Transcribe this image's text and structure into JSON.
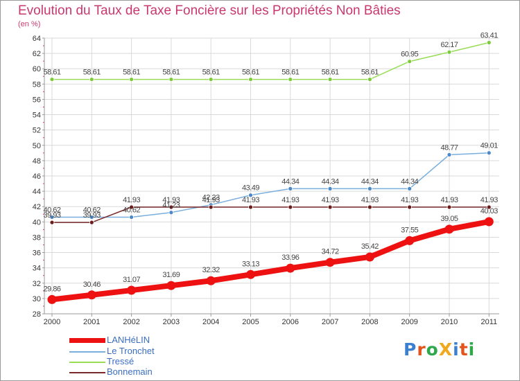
{
  "title": "Evolution du Taux de Taxe Foncière sur les Propriétés Non Bâties",
  "unit_label": "(en %)",
  "logo": "ProXiti",
  "chart_data": {
    "type": "line",
    "categories": [
      "2000",
      "2001",
      "2002",
      "2003",
      "2004",
      "2005",
      "2006",
      "2007",
      "2008",
      "2009",
      "2010",
      "2011"
    ],
    "ylim": [
      28,
      64
    ],
    "yticks": [
      28,
      30,
      32,
      34,
      36,
      38,
      40,
      42,
      44,
      46,
      48,
      50,
      52,
      54,
      56,
      58,
      60,
      62,
      64
    ],
    "grid": true,
    "series": [
      {
        "name": "Tressé",
        "color": "#99dd55",
        "point_color": "#7ccb3a",
        "width": 1.5,
        "radius": 3,
        "values": [
          58.61,
          58.61,
          58.61,
          58.61,
          58.61,
          58.61,
          58.61,
          58.61,
          58.61,
          60.95,
          62.17,
          63.41
        ],
        "labels": [
          "58.61",
          "58.61",
          "58.61",
          "58.61",
          "58.61",
          "58.61",
          "58.61",
          "58.61",
          "58.61",
          "60.95",
          "62.17",
          "63.41"
        ]
      },
      {
        "name": "Le Tronchet",
        "color": "#7aaedc",
        "point_color": "#4a88c8",
        "width": 1.5,
        "radius": 3,
        "values": [
          40.62,
          40.62,
          40.62,
          41.23,
          42.23,
          43.49,
          44.34,
          44.34,
          44.34,
          44.34,
          48.77,
          49.01
        ],
        "labels": [
          "40.62",
          "40.62",
          "40.62",
          "41.23",
          "42.23",
          "43.49",
          "44.34",
          "44.34",
          "44.34",
          "44.34",
          "48.77",
          "49.01"
        ]
      },
      {
        "name": "Bonnemain",
        "color": "#7a2a2a",
        "point_color": "#6b1c1c",
        "width": 1.5,
        "radius": 3,
        "values": [
          39.93,
          39.93,
          41.93,
          41.93,
          41.93,
          41.93,
          41.93,
          41.93,
          41.93,
          41.93,
          41.93,
          41.93
        ],
        "labels": [
          "39.93",
          "39.93",
          "41.93",
          "41.93",
          "41.93",
          "41.93",
          "41.93",
          "41.93",
          "41.93",
          "41.93",
          "41.93",
          "41.93"
        ]
      },
      {
        "name": "LANHéLIN",
        "color": "#ee1111",
        "point_color": "#ee1111",
        "width": 8,
        "radius": 6.5,
        "values": [
          29.86,
          30.46,
          31.07,
          31.69,
          32.32,
          33.13,
          33.96,
          34.72,
          35.42,
          37.55,
          39.05,
          40.03
        ],
        "labels": [
          "29.86",
          "30.46",
          "31.07",
          "31.69",
          "32.32",
          "33.13",
          "33.96",
          "34.72",
          "35.42",
          "37.55",
          "39.05",
          "40.03"
        ]
      }
    ],
    "legend": [
      "LANHéLIN",
      "Le Tronchet",
      "Tressé",
      "Bonnemain"
    ]
  }
}
